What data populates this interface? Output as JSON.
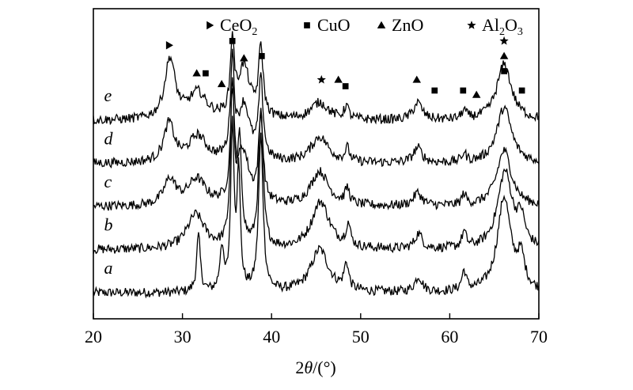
{
  "chart_data": {
    "type": "line",
    "xlabel_prefix": "2",
    "xlabel_var": "θ",
    "xlabel_unit": "/(°)",
    "xlim": [
      20,
      70
    ],
    "xticks": [
      20,
      30,
      40,
      50,
      60,
      70
    ],
    "yticks_shown": false,
    "legend": [
      {
        "symbol": "triangle-right",
        "name": "CeO",
        "sub": "2"
      },
      {
        "symbol": "square",
        "name": "CuO",
        "sub": ""
      },
      {
        "symbol": "triangle-up",
        "name": "ZnO",
        "sub": ""
      },
      {
        "symbol": "star",
        "name": "Al",
        "sub": "2",
        "name2": "O",
        "sub2": "3"
      }
    ],
    "series": [
      {
        "name": "a",
        "baseline": 0.0,
        "peaks": [
          [
            31.8,
            1.3,
            0.25
          ],
          [
            34.4,
            1.0,
            0.25
          ],
          [
            35.6,
            3.8,
            0.22
          ],
          [
            36.3,
            2.8,
            0.22
          ],
          [
            38.8,
            3.6,
            0.3
          ],
          [
            45.4,
            1.0,
            1.2
          ],
          [
            48.4,
            0.6,
            0.3
          ],
          [
            56.5,
            0.35,
            0.5
          ],
          [
            61.6,
            0.45,
            0.3
          ],
          [
            66.1,
            2.2,
            0.9
          ],
          [
            68.0,
            0.7,
            0.5
          ]
        ]
      },
      {
        "name": "b",
        "baseline": 1.0,
        "peaks": [
          [
            31.5,
            0.8,
            1.2
          ],
          [
            35.6,
            3.7,
            0.25
          ],
          [
            36.4,
            2.3,
            0.3
          ],
          [
            38.8,
            3.2,
            0.3
          ],
          [
            45.5,
            1.1,
            1.2
          ],
          [
            48.6,
            0.5,
            0.3
          ],
          [
            56.5,
            0.35,
            0.5
          ],
          [
            61.6,
            0.35,
            0.3
          ],
          [
            66.2,
            1.8,
            1.0
          ],
          [
            68.0,
            0.6,
            0.5
          ]
        ]
      },
      {
        "name": "c",
        "baseline": 2.0,
        "peaks": [
          [
            28.6,
            0.6,
            0.8
          ],
          [
            31.6,
            0.6,
            1.2
          ],
          [
            35.6,
            2.4,
            0.25
          ],
          [
            36.8,
            1.2,
            0.8
          ],
          [
            38.8,
            2.0,
            0.3
          ],
          [
            45.4,
            0.8,
            1.2
          ],
          [
            48.5,
            0.35,
            0.3
          ],
          [
            56.4,
            0.3,
            0.6
          ],
          [
            61.6,
            0.25,
            0.3
          ],
          [
            66.1,
            1.3,
            1.0
          ]
        ]
      },
      {
        "name": "d",
        "baseline": 3.0,
        "peaks": [
          [
            28.5,
            0.9,
            0.7
          ],
          [
            31.7,
            0.6,
            1.2
          ],
          [
            35.6,
            2.2,
            0.25
          ],
          [
            36.9,
            1.3,
            0.8
          ],
          [
            38.8,
            1.8,
            0.3
          ],
          [
            45.4,
            0.6,
            1.2
          ],
          [
            48.5,
            0.3,
            0.3
          ],
          [
            56.4,
            0.35,
            0.6
          ],
          [
            61.6,
            0.2,
            0.3
          ],
          [
            66.1,
            1.3,
            1.0
          ]
        ]
      },
      {
        "name": "e",
        "baseline": 4.0,
        "peaks": [
          [
            28.6,
            1.4,
            0.7
          ],
          [
            31.7,
            0.6,
            1.2
          ],
          [
            35.6,
            1.7,
            0.25
          ],
          [
            36.9,
            1.2,
            0.8
          ],
          [
            38.8,
            1.6,
            0.3
          ],
          [
            45.4,
            0.4,
            1.2
          ],
          [
            48.4,
            0.3,
            0.3
          ],
          [
            56.4,
            0.4,
            0.6
          ],
          [
            61.6,
            0.2,
            0.3
          ],
          [
            66.1,
            1.3,
            1.0
          ]
        ]
      }
    ],
    "markers": [
      {
        "symbol": "triangle-right",
        "x": 28.5,
        "y": 5.75
      },
      {
        "symbol": "triangle-up",
        "x": 31.6,
        "y": 5.1
      },
      {
        "symbol": "square",
        "x": 32.6,
        "y": 5.1
      },
      {
        "symbol": "triangle-up",
        "x": 34.4,
        "y": 4.85
      },
      {
        "symbol": "square",
        "x": 35.6,
        "y": 5.85
      },
      {
        "symbol": "triangle-up",
        "x": 36.9,
        "y": 5.45
      },
      {
        "symbol": "square",
        "x": 38.9,
        "y": 5.5
      },
      {
        "symbol": "star",
        "x": 45.6,
        "y": 4.95
      },
      {
        "symbol": "triangle-up",
        "x": 47.5,
        "y": 4.95
      },
      {
        "symbol": "square",
        "x": 48.3,
        "y": 4.8
      },
      {
        "symbol": "triangle-up",
        "x": 56.3,
        "y": 4.95
      },
      {
        "symbol": "square",
        "x": 58.3,
        "y": 4.7
      },
      {
        "symbol": "square",
        "x": 61.5,
        "y": 4.7
      },
      {
        "symbol": "triangle-up",
        "x": 63.0,
        "y": 4.6
      },
      {
        "symbol": "star",
        "x": 66.1,
        "y": 5.85
      },
      {
        "symbol": "triangle-up",
        "x": 66.1,
        "y": 5.5
      },
      {
        "symbol": "square",
        "x": 66.1,
        "y": 5.15
      },
      {
        "symbol": "square",
        "x": 68.1,
        "y": 4.7
      }
    ]
  }
}
